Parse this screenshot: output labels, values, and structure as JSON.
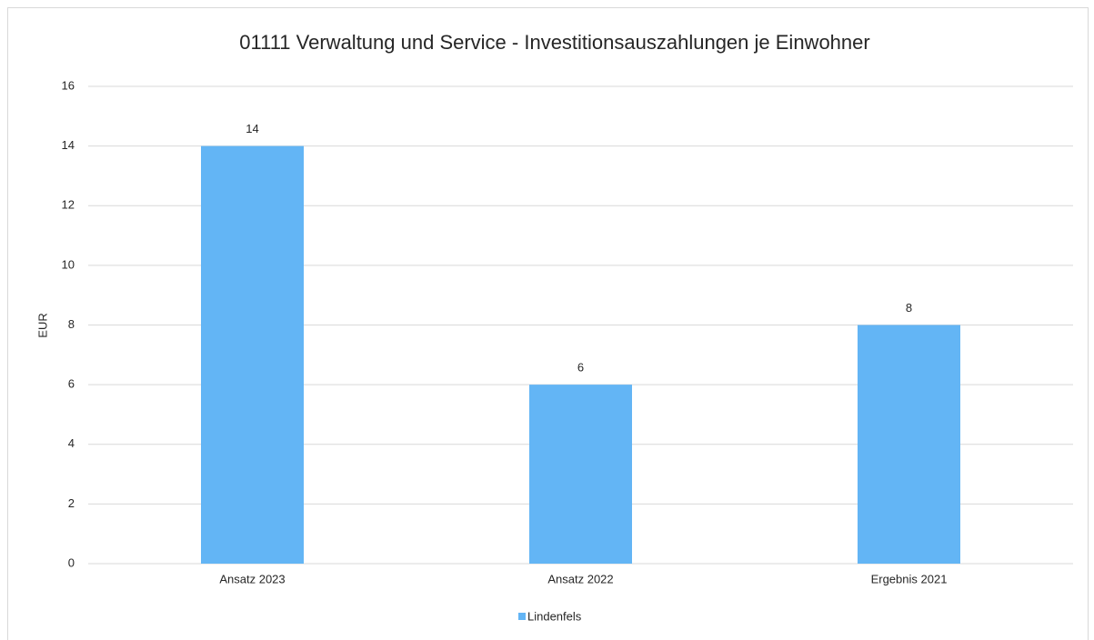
{
  "chart_data": {
    "type": "bar",
    "title": "01111 Verwaltung und Service - Investitionsauszahlungen je Einwohner",
    "y_label": "EUR",
    "categories": [
      "Ansatz 2023",
      "Ansatz 2022",
      "Ergebnis 2021"
    ],
    "series": [
      {
        "name": "Lindenfels",
        "color": "#63b5f5",
        "values": [
          14,
          6,
          8
        ]
      }
    ],
    "ylim": [
      0,
      16
    ],
    "yticks": [
      0,
      2,
      4,
      6,
      8,
      10,
      12,
      14,
      16
    ],
    "grid": true,
    "legend": "bottom"
  }
}
